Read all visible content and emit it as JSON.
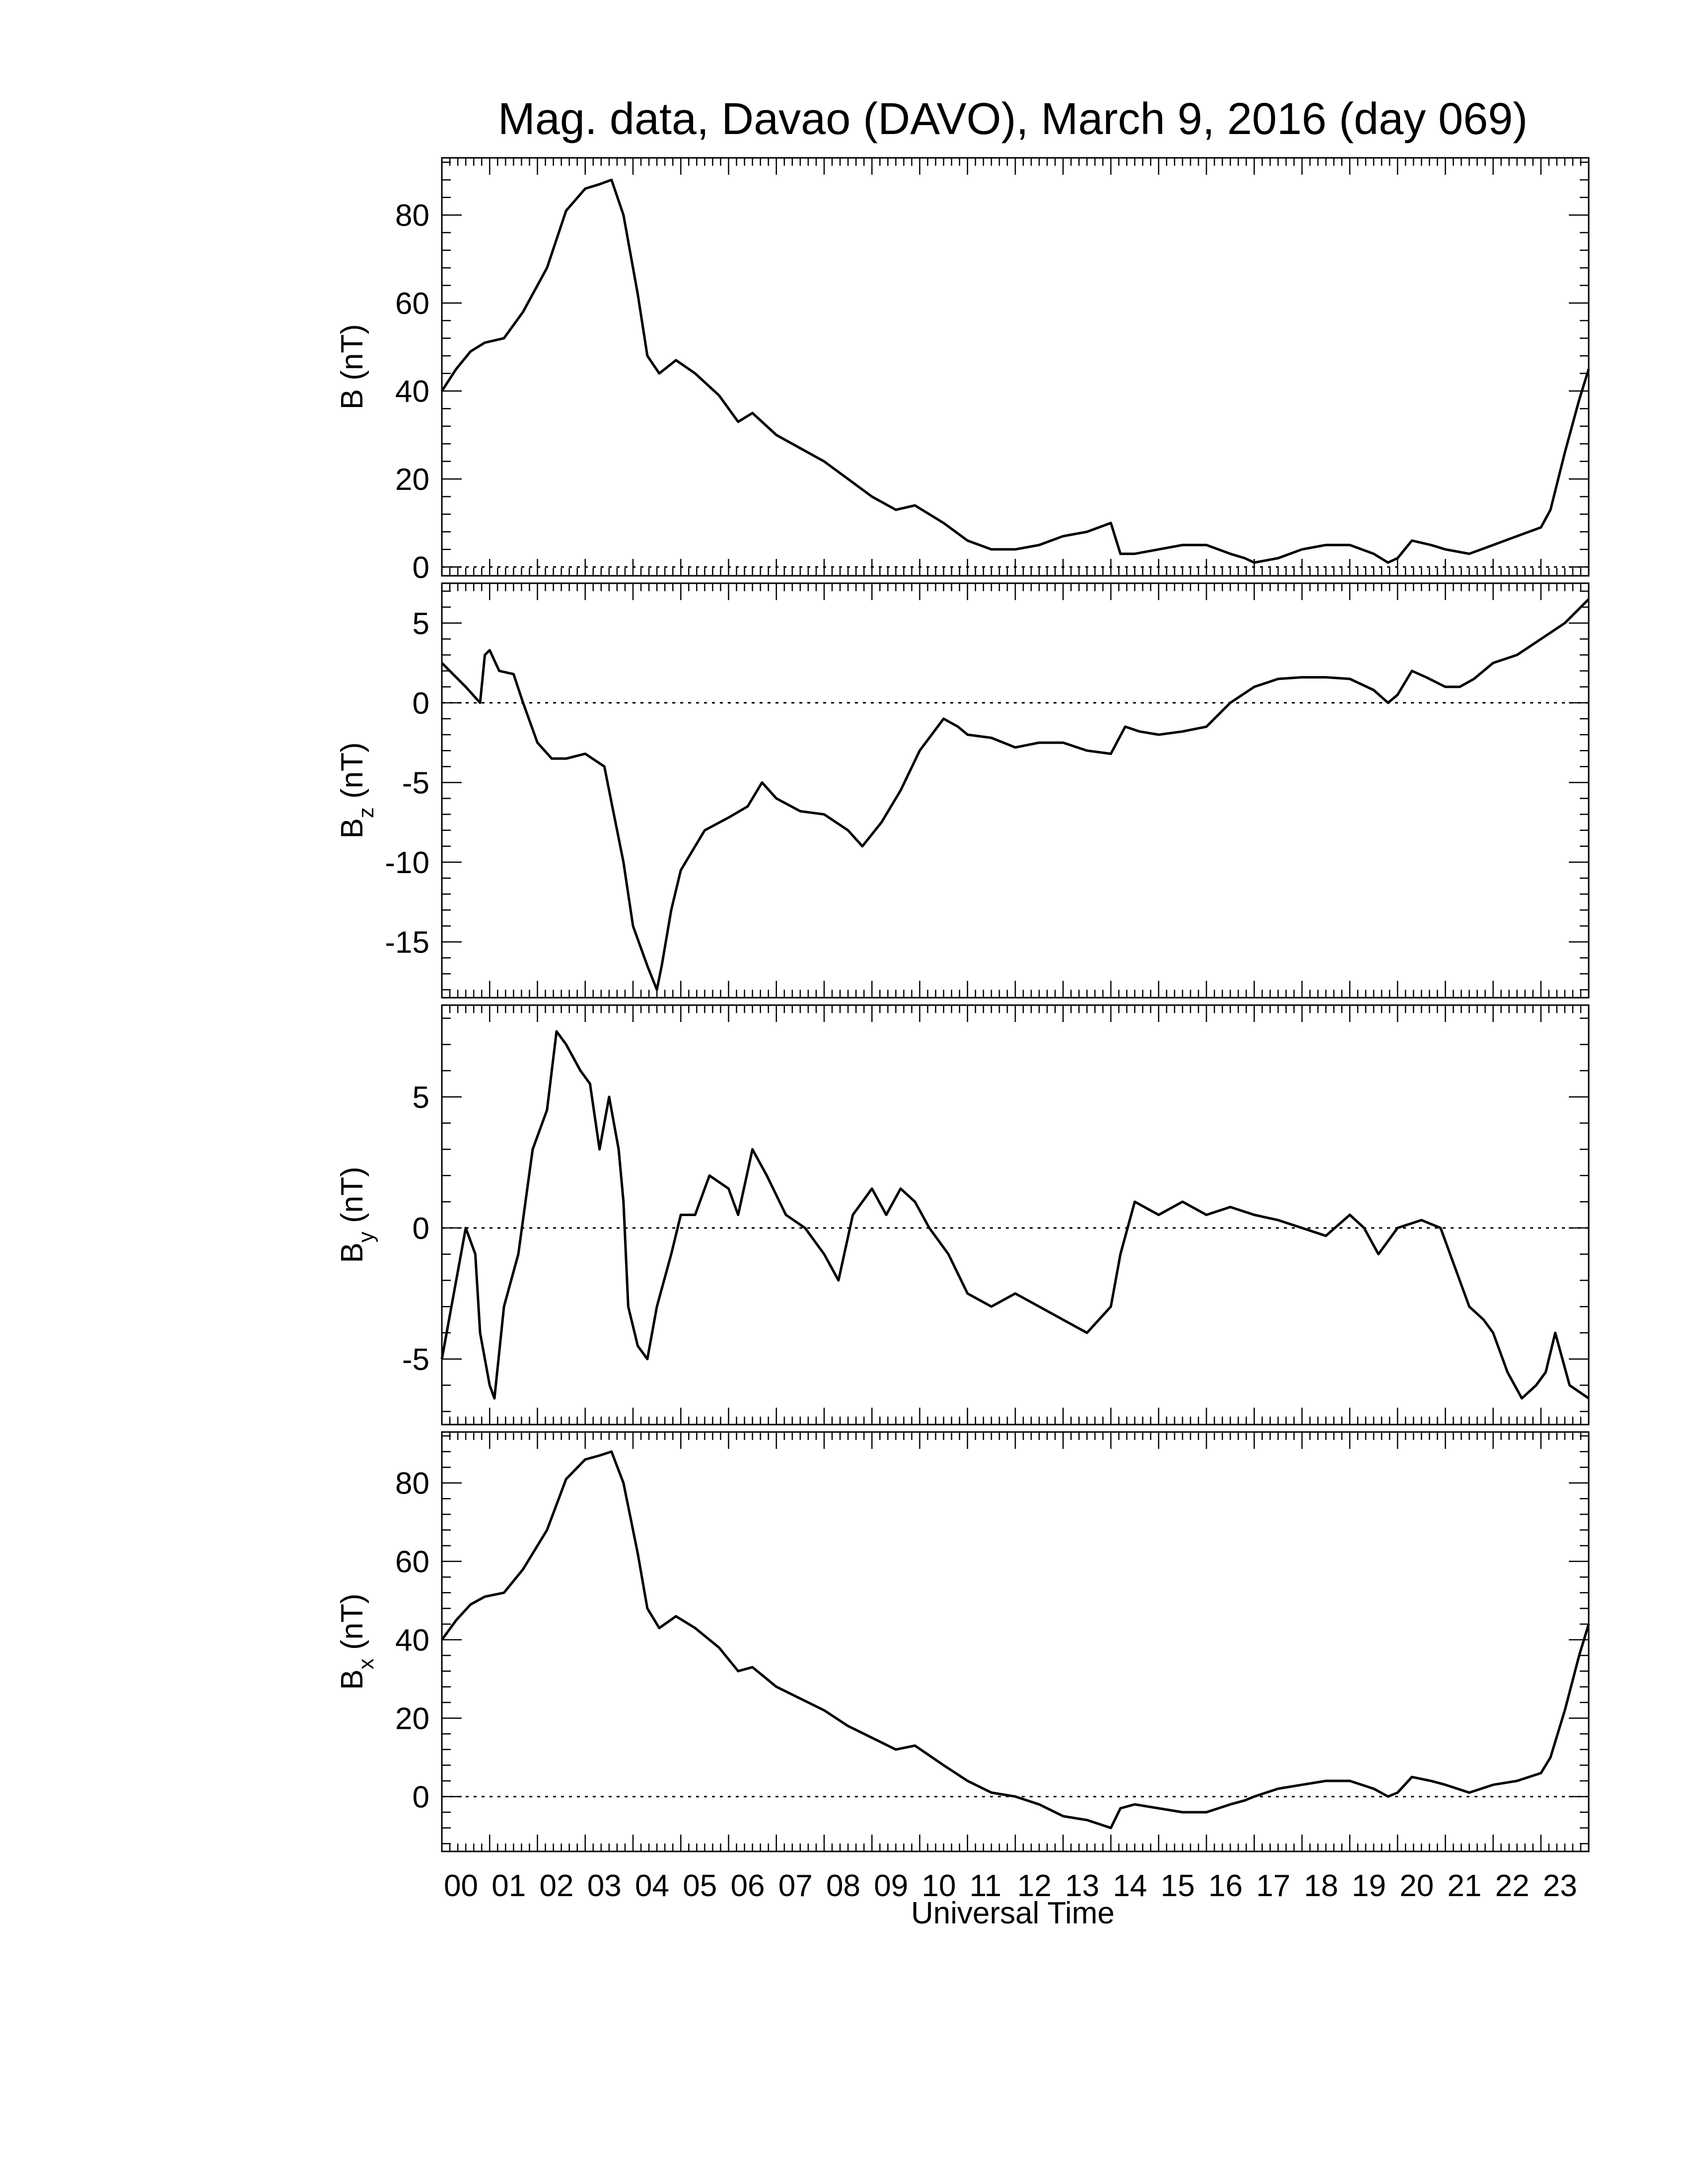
{
  "title": "Mag. data, Davao (DAVO), March 9, 2016 (day 069)",
  "xlabel": "Universal Time",
  "hour_labels": [
    "00",
    "01",
    "02",
    "03",
    "04",
    "05",
    "06",
    "07",
    "08",
    "09",
    "10",
    "11",
    "12",
    "13",
    "14",
    "15",
    "16",
    "17",
    "18",
    "19",
    "20",
    "21",
    "22",
    "23"
  ],
  "line_color": "#000000",
  "chart_data": [
    {
      "type": "line",
      "ylabel": "B (nT)",
      "xlim": [
        0,
        24
      ],
      "ylim": [
        -2,
        93
      ],
      "yticks": [
        0,
        20,
        40,
        60,
        80
      ],
      "reference_line": 0,
      "x": [
        0,
        0.3,
        0.6,
        0.9,
        1.3,
        1.7,
        2.2,
        2.6,
        3.0,
        3.3,
        3.55,
        3.8,
        4.1,
        4.3,
        4.55,
        4.9,
        5.3,
        5.8,
        6.2,
        6.5,
        7.0,
        7.5,
        8.0,
        8.5,
        9.0,
        9.5,
        9.9,
        10.5,
        11.0,
        11.5,
        12.0,
        12.5,
        13.0,
        13.5,
        14.0,
        14.2,
        14.5,
        15.0,
        15.5,
        16.0,
        16.5,
        16.8,
        17.0,
        17.5,
        18.0,
        18.5,
        19.0,
        19.5,
        19.8,
        20.0,
        20.3,
        20.7,
        21.0,
        21.5,
        22.0,
        22.5,
        23.0,
        23.2,
        23.5,
        23.8,
        24.0
      ],
      "y": [
        40,
        45,
        49,
        51,
        52,
        58,
        68,
        81,
        86,
        87,
        88,
        80,
        62,
        48,
        44,
        47,
        44,
        39,
        33,
        35,
        30,
        27,
        24,
        20,
        16,
        13,
        14,
        10,
        6,
        4,
        4,
        5,
        7,
        8,
        10,
        3,
        3,
        4,
        5,
        5,
        3,
        2,
        1,
        2,
        4,
        5,
        5,
        3,
        1,
        2,
        6,
        5,
        4,
        3,
        5,
        7,
        9,
        13,
        26,
        38,
        45
      ]
    },
    {
      "type": "line",
      "ylabel": "B",
      "ylabel_sub": "z",
      "ylabel_unit": " (nT)",
      "xlim": [
        0,
        24
      ],
      "ylim": [
        -18.5,
        7.5
      ],
      "yticks": [
        5,
        0,
        -5,
        -10,
        -15
      ],
      "reference_line": 0,
      "x": [
        0,
        0.5,
        0.8,
        0.9,
        1.0,
        1.2,
        1.5,
        1.7,
        2.0,
        2.3,
        2.6,
        3.0,
        3.4,
        3.6,
        3.8,
        4.0,
        4.3,
        4.5,
        4.6,
        4.8,
        5.0,
        5.5,
        6.0,
        6.4,
        6.7,
        7.0,
        7.5,
        8.0,
        8.5,
        8.8,
        9.2,
        9.6,
        10.0,
        10.5,
        10.8,
        11.0,
        11.5,
        12.0,
        12.5,
        13.0,
        13.5,
        14.0,
        14.3,
        14.6,
        15.0,
        15.5,
        16.0,
        16.5,
        17.0,
        17.5,
        18.0,
        18.5,
        19.0,
        19.5,
        19.8,
        20.0,
        20.3,
        20.6,
        21.0,
        21.3,
        21.6,
        22.0,
        22.5,
        23.0,
        23.5,
        24.0
      ],
      "y": [
        2.5,
        1.0,
        0.0,
        3.0,
        3.3,
        2.0,
        1.8,
        0.0,
        -2.5,
        -3.5,
        -3.5,
        -3.2,
        -4.0,
        -7.0,
        -10.0,
        -14.0,
        -16.5,
        -18.0,
        -16.5,
        -13.0,
        -10.5,
        -8.0,
        -7.2,
        -6.5,
        -5.0,
        -6.0,
        -6.8,
        -7.0,
        -8.0,
        -9.0,
        -7.5,
        -5.5,
        -3.0,
        -1.0,
        -1.5,
        -2.0,
        -2.2,
        -2.8,
        -2.5,
        -2.5,
        -3.0,
        -3.2,
        -1.5,
        -1.8,
        -2.0,
        -1.8,
        -1.5,
        0.0,
        1.0,
        1.5,
        1.6,
        1.6,
        1.5,
        0.8,
        0.0,
        0.5,
        2.0,
        1.6,
        1.0,
        1.0,
        1.5,
        2.5,
        3.0,
        4.0,
        5.0,
        6.5
      ]
    },
    {
      "type": "line",
      "ylabel": "B",
      "ylabel_sub": "y",
      "ylabel_unit": " (nT)",
      "xlim": [
        0,
        24
      ],
      "ylim": [
        -7.5,
        8.5
      ],
      "yticks": [
        5,
        0,
        -5
      ],
      "reference_line": 0,
      "x": [
        0,
        0.3,
        0.5,
        0.7,
        0.8,
        1.0,
        1.1,
        1.3,
        1.6,
        1.9,
        2.2,
        2.4,
        2.6,
        2.9,
        3.1,
        3.3,
        3.5,
        3.7,
        3.8,
        3.9,
        4.1,
        4.3,
        4.5,
        4.8,
        5.0,
        5.3,
        5.6,
        6.0,
        6.2,
        6.5,
        6.8,
        7.2,
        7.6,
        8.0,
        8.3,
        8.6,
        9.0,
        9.3,
        9.6,
        9.9,
        10.2,
        10.6,
        11.0,
        11.5,
        12.0,
        12.5,
        13.0,
        13.5,
        14.0,
        14.2,
        14.5,
        15.0,
        15.5,
        16.0,
        16.5,
        17.0,
        17.5,
        18.0,
        18.5,
        19.0,
        19.3,
        19.6,
        20.0,
        20.5,
        20.9,
        21.1,
        21.5,
        21.8,
        22.0,
        22.3,
        22.6,
        22.9,
        23.1,
        23.3,
        23.6,
        24.0
      ],
      "y": [
        -5.0,
        -2.0,
        0.0,
        -1.0,
        -4.0,
        -6.0,
        -6.5,
        -3.0,
        -1.0,
        3.0,
        4.5,
        7.5,
        7.0,
        6.0,
        5.5,
        3.0,
        5.0,
        3.0,
        1.0,
        -3.0,
        -4.5,
        -5.0,
        -3.0,
        -1.0,
        0.5,
        0.5,
        2.0,
        1.5,
        0.5,
        3.0,
        2.0,
        0.5,
        0.0,
        -1.0,
        -2.0,
        0.5,
        1.5,
        0.5,
        1.5,
        1.0,
        0.0,
        -1.0,
        -2.5,
        -3.0,
        -2.5,
        -3.0,
        -3.5,
        -4.0,
        -3.0,
        -1.0,
        1.0,
        0.5,
        1.0,
        0.5,
        0.8,
        0.5,
        0.3,
        0.0,
        -0.3,
        0.5,
        0.0,
        -1.0,
        0.0,
        0.3,
        0.0,
        -1.0,
        -3.0,
        -3.5,
        -4.0,
        -5.5,
        -6.5,
        -6.0,
        -5.5,
        -4.0,
        -6.0,
        -6.5
      ]
    },
    {
      "type": "line",
      "ylabel": "B",
      "ylabel_sub": "x",
      "ylabel_unit": " (nT)",
      "xlim": [
        0,
        24
      ],
      "ylim": [
        -14,
        93
      ],
      "yticks": [
        0,
        20,
        40,
        60,
        80
      ],
      "reference_line": 0,
      "x": [
        0,
        0.3,
        0.6,
        0.9,
        1.3,
        1.7,
        2.2,
        2.6,
        3.0,
        3.3,
        3.55,
        3.8,
        4.1,
        4.3,
        4.55,
        4.9,
        5.3,
        5.8,
        6.2,
        6.5,
        7.0,
        7.5,
        8.0,
        8.5,
        9.0,
        9.5,
        9.9,
        10.5,
        11.0,
        11.5,
        12.0,
        12.5,
        13.0,
        13.5,
        14.0,
        14.2,
        14.5,
        15.0,
        15.5,
        16.0,
        16.5,
        16.8,
        17.0,
        17.5,
        18.0,
        18.5,
        19.0,
        19.5,
        19.8,
        20.0,
        20.3,
        20.7,
        21.0,
        21.5,
        22.0,
        22.5,
        23.0,
        23.2,
        23.5,
        23.8,
        24.0
      ],
      "y": [
        40,
        45,
        49,
        51,
        52,
        58,
        68,
        81,
        86,
        87,
        88,
        80,
        62,
        48,
        43,
        46,
        43,
        38,
        32,
        33,
        28,
        25,
        22,
        18,
        15,
        12,
        13,
        8,
        4,
        1,
        0,
        -2,
        -5,
        -6,
        -8,
        -3,
        -2,
        -3,
        -4,
        -4,
        -2,
        -1,
        0,
        2,
        3,
        4,
        4,
        2,
        0,
        1,
        5,
        4,
        3,
        1,
        3,
        4,
        6,
        10,
        22,
        36,
        44
      ]
    }
  ]
}
